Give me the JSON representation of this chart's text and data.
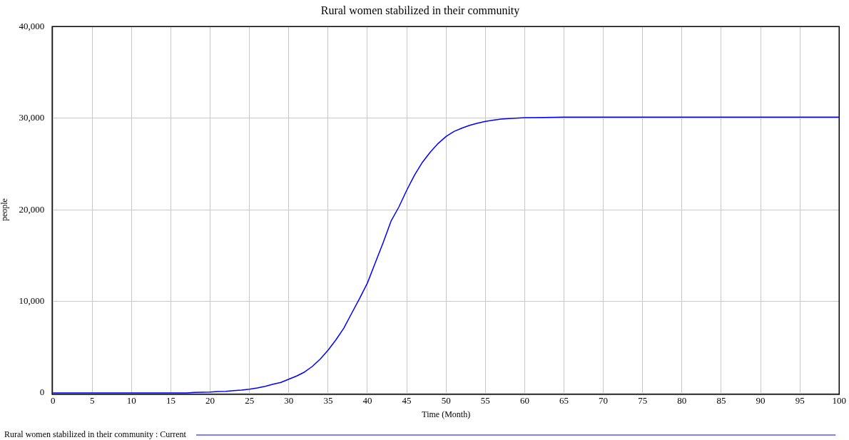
{
  "chart_data": {
    "type": "line",
    "title": "Rural women stabilized in their community",
    "xlabel": "Time (Month)",
    "ylabel": "people",
    "x": [
      0,
      5,
      10,
      15,
      17,
      18,
      20,
      21,
      22,
      23,
      24,
      25,
      26,
      27,
      28,
      29,
      30,
      31,
      32,
      33,
      34,
      35,
      36,
      37,
      38,
      39,
      40,
      41,
      42,
      43,
      44,
      45,
      46,
      47,
      48,
      49,
      50,
      51,
      52,
      53,
      54,
      55,
      56,
      57,
      58,
      60,
      65,
      70,
      80,
      90,
      100
    ],
    "series": [
      {
        "name": "Rural women stabilized in their community : Current",
        "color": "#0000ff",
        "values": [
          0,
          0,
          0,
          0,
          0,
          50,
          100,
          150,
          180,
          250,
          320,
          410,
          550,
          720,
          950,
          1150,
          1500,
          1850,
          2280,
          2900,
          3700,
          4670,
          5800,
          7080,
          8700,
          10300,
          12000,
          14200,
          16400,
          18750,
          20300,
          22130,
          23800,
          25190,
          26300,
          27240,
          28000,
          28540,
          28900,
          29210,
          29450,
          29650,
          29780,
          29900,
          29950,
          30050,
          30100,
          30100,
          30100,
          30100,
          30100
        ]
      }
    ],
    "xlim": [
      0,
      100
    ],
    "xticks": [
      0,
      5,
      10,
      15,
      20,
      25,
      30,
      35,
      40,
      45,
      50,
      55,
      60,
      65,
      70,
      75,
      80,
      85,
      90,
      95,
      100
    ],
    "ylim": [
      0,
      40000
    ],
    "yticks": [
      0,
      {
        "value": 10000,
        "label": "10,000"
      },
      {
        "value": 20000,
        "label": "20,000"
      },
      {
        "value": 30000,
        "label": "30,000"
      },
      {
        "value": 40000,
        "label": "40,000"
      }
    ],
    "grid": true,
    "legend": "bottom",
    "marker": "none",
    "line_style": "solid"
  }
}
